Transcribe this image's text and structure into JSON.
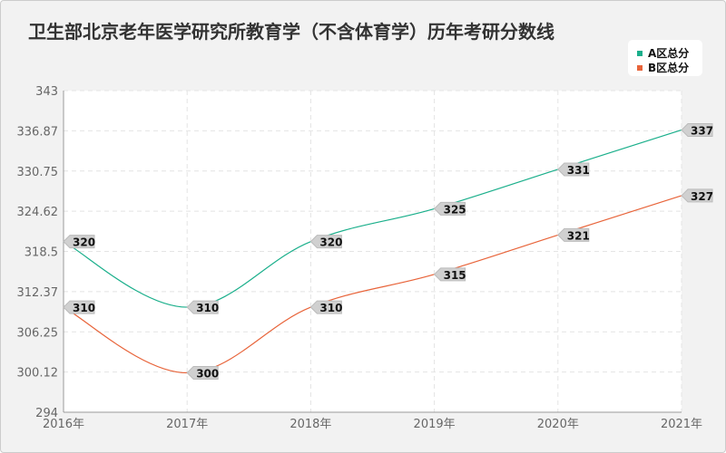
{
  "chart_data": {
    "type": "line",
    "title": "卫生部北京老年医学研究所教育学（不含体育学）历年考研分数线",
    "categories": [
      "2016年",
      "2017年",
      "2018年",
      "2019年",
      "2020年",
      "2021年"
    ],
    "ylim": [
      294,
      343
    ],
    "yticks": [
      "343",
      "336.87",
      "330.75",
      "324.62",
      "318.5",
      "312.37",
      "306.25",
      "300.12",
      "294"
    ],
    "grid": true,
    "legend_position": "top-right",
    "series": [
      {
        "name": "A区总分",
        "color": "#1aaf8b",
        "values": [
          320,
          310,
          320,
          325,
          331,
          337
        ]
      },
      {
        "name": "B区总分",
        "color": "#e8643a",
        "values": [
          310,
          300,
          310,
          315,
          321,
          327
        ]
      }
    ]
  }
}
